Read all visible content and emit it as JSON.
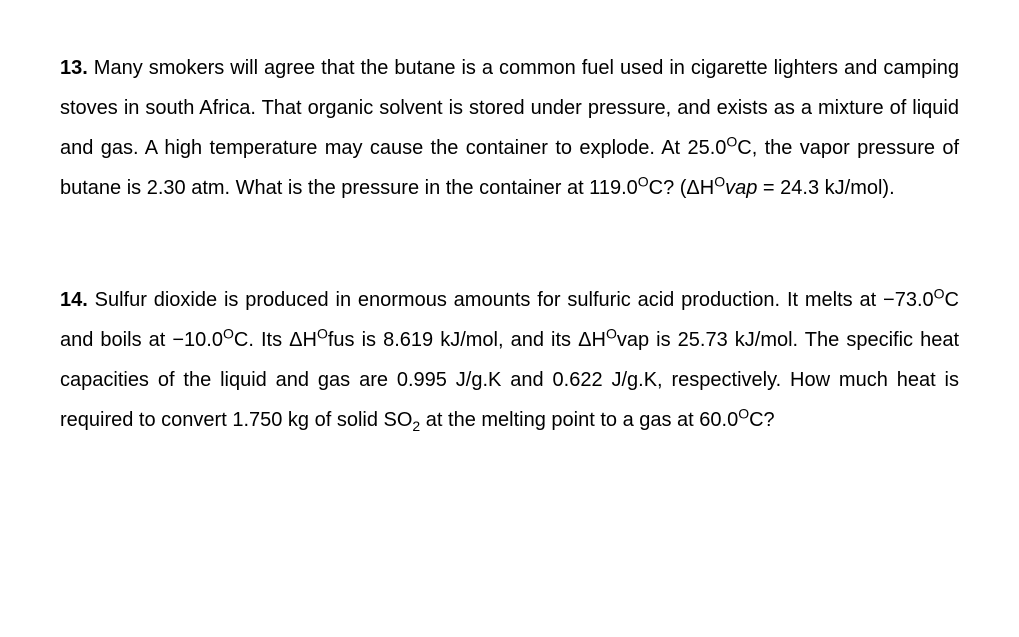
{
  "questions": [
    {
      "number": "13.",
      "segments": [
        {
          "t": " Many smokers will agree that the butane is a common fuel used in cigarette lighters and camping stoves in south Africa. That organic solvent is stored under pressure, and exists as a mixture of liquid and gas. A high temperature may cause the container to explode. At 25.0"
        },
        {
          "sup": "O"
        },
        {
          "t": "C, the vapor pressure of butane is 2.30 atm. What is the pressure in the container at 119.0"
        },
        {
          "sup": "O"
        },
        {
          "t": "C? (ΔH"
        },
        {
          "sup": "O"
        },
        {
          "italic": "vap"
        },
        {
          "t": " = 24.3 kJ/mol)."
        }
      ]
    },
    {
      "number": "14.",
      "segments": [
        {
          "t": " Sulfur dioxide is produced in enormous amounts for sulfuric acid production. It melts at −73.0"
        },
        {
          "sup": "O"
        },
        {
          "t": "C and boils at −10.0"
        },
        {
          "sup": "O"
        },
        {
          "t": "C. Its ΔH"
        },
        {
          "sup": "O"
        },
        {
          "t": "fus is 8.619 kJ/mol, and its ΔH"
        },
        {
          "sup": "O"
        },
        {
          "t": "vap is 25.73 kJ/mol. The specific heat capacities of the liquid and gas are 0.995 J/g.K and 0.622 J/g.K, respectively. How much heat is required to convert 1.750 kg of solid SO"
        },
        {
          "sub": "2"
        },
        {
          "t": " at the melting point to a gas at 60.0"
        },
        {
          "sup": "O"
        },
        {
          "t": "C?"
        }
      ]
    }
  ]
}
